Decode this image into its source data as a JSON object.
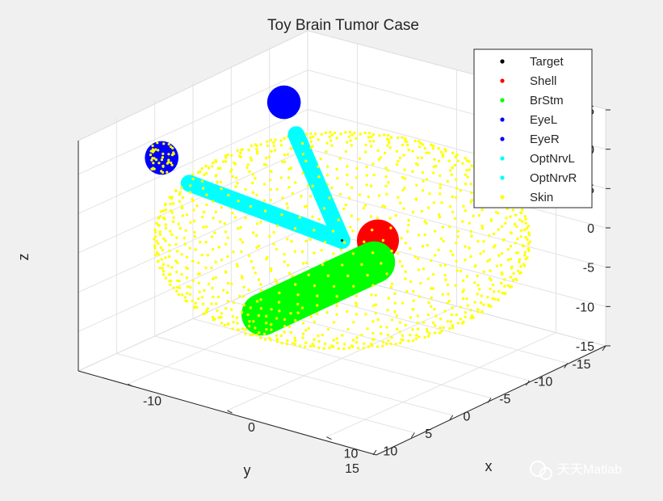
{
  "watermark": "天天Matlab",
  "chart_data": {
    "type": "scatter",
    "dimensions": 3,
    "title": "Toy Brain Tumor Case",
    "xlabel": "x",
    "ylabel": "y",
    "zlabel": "z",
    "xlim": [
      -15,
      15
    ],
    "ylim": [
      -15,
      15
    ],
    "zlim": [
      -15,
      15
    ],
    "x_ticks": [
      "-10",
      "0",
      "10"
    ],
    "y_ticks": [
      "-15",
      "-10",
      "-5",
      "0",
      "5",
      "10",
      "15"
    ],
    "z_ticks": [
      "15",
      "10",
      "5",
      "0",
      "-5",
      "-10",
      "-15"
    ],
    "grid": true,
    "legend_position": "top-right",
    "series": [
      {
        "name": "Target",
        "color": "#000000",
        "shape": "point",
        "center": [
          0,
          0,
          0
        ]
      },
      {
        "name": "Shell",
        "color": "#ff0000",
        "shape": "sphere",
        "center": [
          -1,
          -6,
          -3
        ],
        "radius": 2.5
      },
      {
        "name": "BrStm",
        "color": "#00ff00",
        "shape": "cylinder",
        "from": [
          4,
          1,
          -1
        ],
        "to": [
          2,
          13,
          -3
        ],
        "radius": 2.5
      },
      {
        "name": "EyeL",
        "color": "#0000ff",
        "shape": "sphere",
        "center": [
          -12,
          -8,
          10
        ],
        "radius": 2
      },
      {
        "name": "EyeR",
        "color": "#0000ff",
        "shape": "sphere",
        "center": [
          -12,
          8,
          10
        ],
        "radius": 2
      },
      {
        "name": "OptNrvL",
        "color": "#00ffff",
        "shape": "cylinder",
        "from": [
          -10,
          -7,
          7
        ],
        "to": [
          0,
          0,
          0
        ],
        "radius": 1
      },
      {
        "name": "OptNrvR",
        "color": "#00ffff",
        "shape": "cylinder",
        "from": [
          -10,
          7,
          7
        ],
        "to": [
          0,
          0,
          0
        ],
        "radius": 1
      },
      {
        "name": "Skin",
        "color": "#ffff00",
        "shape": "ellipsoid-shell",
        "center": [
          0,
          0,
          0
        ],
        "radii": [
          15,
          15,
          11
        ]
      }
    ]
  }
}
